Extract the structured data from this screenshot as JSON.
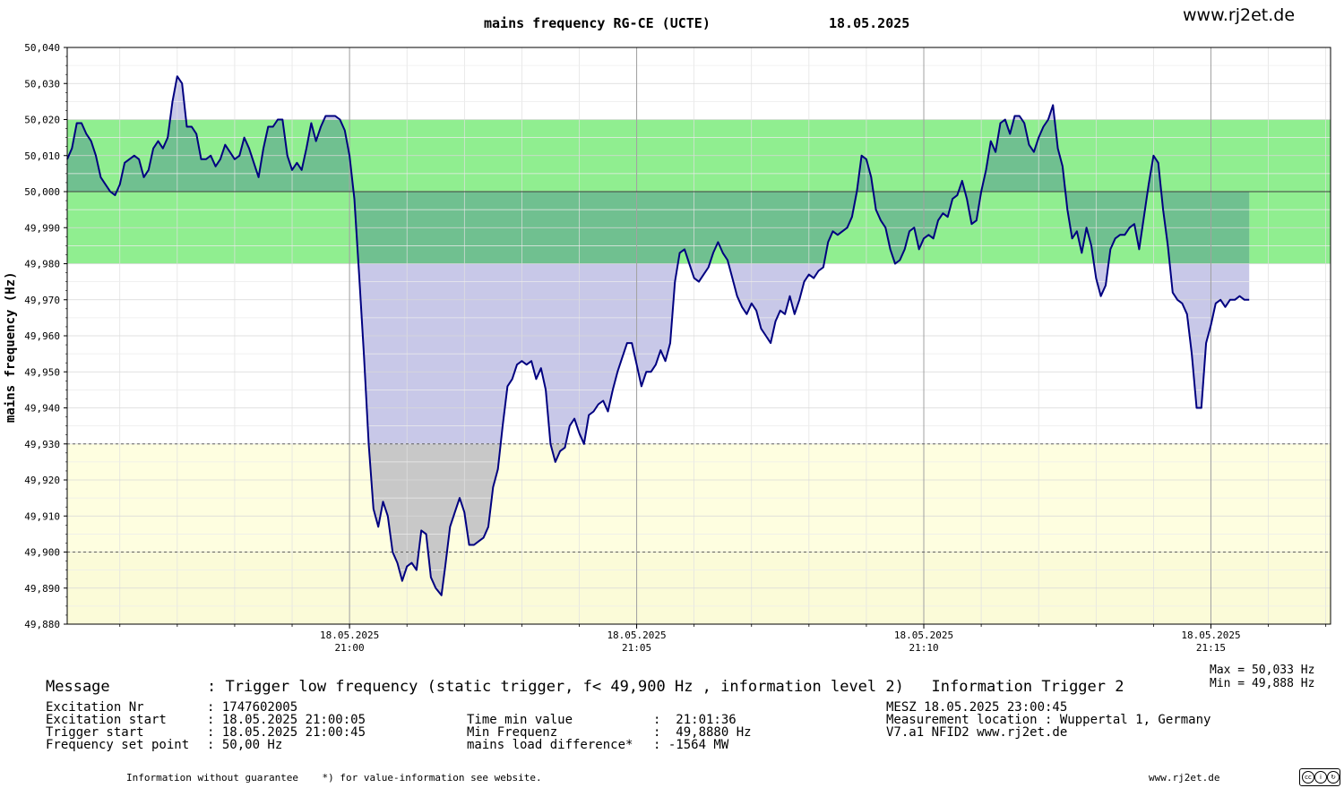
{
  "header": {
    "title": "mains frequency RG-CE (UCTE)",
    "date": "18.05.2025",
    "site": "www.rj2et.de"
  },
  "chart_data": {
    "type": "area",
    "title": "mains frequency RG-CE (UCTE)",
    "ylabel": "mains frequency (Hz)",
    "xlabel": "",
    "ylim": [
      49.88,
      50.04
    ],
    "x_unit": "time (HH:MM:SS, 18.05.2025)",
    "xlim": [
      "20:55:05",
      "21:17:05"
    ],
    "yticks": [
      "50,040",
      "50,030",
      "50,020",
      "50,010",
      "50,000",
      "49,990",
      "49,980",
      "49,970",
      "49,960",
      "49,950",
      "49,940",
      "49,930",
      "49,920",
      "49,910",
      "49,900",
      "49,890",
      "49,880"
    ],
    "xticks": [
      {
        "date": "18.05.2025",
        "time": "21:00",
        "t": "21:00:00"
      },
      {
        "date": "18.05.2025",
        "time": "21:05",
        "t": "21:05:00"
      },
      {
        "date": "18.05.2025",
        "time": "21:10",
        "t": "21:10:00"
      },
      {
        "date": "18.05.2025",
        "time": "21:15",
        "t": "21:15:00"
      }
    ],
    "bands": [
      {
        "name": "normal",
        "from": 49.98,
        "to": 50.02,
        "color": "#90ee90"
      },
      {
        "name": "level1",
        "from": 49.88,
        "to": 49.93,
        "color": "#fefee0"
      },
      {
        "name": "level2",
        "from": 49.88,
        "to": 49.9,
        "color": "#fbfbd8"
      }
    ],
    "reference_lines": [
      50.0,
      49.93,
      49.9
    ],
    "colors": {
      "line": "#000080",
      "fill_blue": "#c8c8e8",
      "fill_dark_green": "#70c090",
      "fill_gray": "#c8c8c8"
    },
    "grid": true,
    "series": [
      {
        "values": [
          [
            "20:55:05",
            50.009
          ],
          [
            "20:55:10",
            50.012
          ],
          [
            "20:55:15",
            50.019
          ],
          [
            "20:55:20",
            50.019
          ],
          [
            "20:55:25",
            50.016
          ],
          [
            "20:55:30",
            50.014
          ],
          [
            "20:55:35",
            50.01
          ],
          [
            "20:55:40",
            50.004
          ],
          [
            "20:55:45",
            50.002
          ],
          [
            "20:55:50",
            50.0
          ],
          [
            "20:55:55",
            49.999
          ],
          [
            "20:56:00",
            50.002
          ],
          [
            "20:56:05",
            50.008
          ],
          [
            "20:56:10",
            50.009
          ],
          [
            "20:56:15",
            50.01
          ],
          [
            "20:56:20",
            50.009
          ],
          [
            "20:56:25",
            50.004
          ],
          [
            "20:56:30",
            50.006
          ],
          [
            "20:56:35",
            50.012
          ],
          [
            "20:56:40",
            50.014
          ],
          [
            "20:56:45",
            50.012
          ],
          [
            "20:56:50",
            50.015
          ],
          [
            "20:56:55",
            50.025
          ],
          [
            "20:57:00",
            50.032
          ],
          [
            "20:57:05",
            50.03
          ],
          [
            "20:57:10",
            50.018
          ],
          [
            "20:57:15",
            50.018
          ],
          [
            "20:57:20",
            50.016
          ],
          [
            "20:57:25",
            50.009
          ],
          [
            "20:57:30",
            50.009
          ],
          [
            "20:57:35",
            50.01
          ],
          [
            "20:57:40",
            50.007
          ],
          [
            "20:57:45",
            50.009
          ],
          [
            "20:57:50",
            50.013
          ],
          [
            "20:57:55",
            50.011
          ],
          [
            "20:58:00",
            50.009
          ],
          [
            "20:58:05",
            50.01
          ],
          [
            "20:58:10",
            50.015
          ],
          [
            "20:58:15",
            50.012
          ],
          [
            "20:58:20",
            50.008
          ],
          [
            "20:58:25",
            50.004
          ],
          [
            "20:58:30",
            50.012
          ],
          [
            "20:58:35",
            50.018
          ],
          [
            "20:58:40",
            50.018
          ],
          [
            "20:58:45",
            50.02
          ],
          [
            "20:58:50",
            50.02
          ],
          [
            "20:58:55",
            50.01
          ],
          [
            "20:59:00",
            50.006
          ],
          [
            "20:59:05",
            50.008
          ],
          [
            "20:59:10",
            50.006
          ],
          [
            "20:59:15",
            50.012
          ],
          [
            "20:59:20",
            50.019
          ],
          [
            "20:59:25",
            50.014
          ],
          [
            "20:59:30",
            50.018
          ],
          [
            "20:59:35",
            50.021
          ],
          [
            "20:59:40",
            50.021
          ],
          [
            "20:59:45",
            50.021
          ],
          [
            "20:59:50",
            50.02
          ],
          [
            "20:59:55",
            50.017
          ],
          [
            "21:00:00",
            50.01
          ],
          [
            "21:00:05",
            49.998
          ],
          [
            "21:00:10",
            49.977
          ],
          [
            "21:00:15",
            49.955
          ],
          [
            "21:00:20",
            49.93
          ],
          [
            "21:00:25",
            49.912
          ],
          [
            "21:00:30",
            49.907
          ],
          [
            "21:00:35",
            49.914
          ],
          [
            "21:00:40",
            49.91
          ],
          [
            "21:00:45",
            49.9
          ],
          [
            "21:00:50",
            49.897
          ],
          [
            "21:00:55",
            49.892
          ],
          [
            "21:01:00",
            49.896
          ],
          [
            "21:01:05",
            49.897
          ],
          [
            "21:01:10",
            49.895
          ],
          [
            "21:01:15",
            49.906
          ],
          [
            "21:01:20",
            49.905
          ],
          [
            "21:01:25",
            49.893
          ],
          [
            "21:01:30",
            49.89
          ],
          [
            "21:01:36",
            49.888
          ],
          [
            "21:01:40",
            49.896
          ],
          [
            "21:01:45",
            49.907
          ],
          [
            "21:01:50",
            49.911
          ],
          [
            "21:01:55",
            49.915
          ],
          [
            "21:02:00",
            49.911
          ],
          [
            "21:02:05",
            49.902
          ],
          [
            "21:02:10",
            49.902
          ],
          [
            "21:02:15",
            49.903
          ],
          [
            "21:02:20",
            49.904
          ],
          [
            "21:02:25",
            49.907
          ],
          [
            "21:02:30",
            49.918
          ],
          [
            "21:02:35",
            49.923
          ],
          [
            "21:02:40",
            49.935
          ],
          [
            "21:02:45",
            49.946
          ],
          [
            "21:02:50",
            49.948
          ],
          [
            "21:02:55",
            49.952
          ],
          [
            "21:03:00",
            49.953
          ],
          [
            "21:03:05",
            49.952
          ],
          [
            "21:03:10",
            49.953
          ],
          [
            "21:03:15",
            49.948
          ],
          [
            "21:03:20",
            49.951
          ],
          [
            "21:03:25",
            49.945
          ],
          [
            "21:03:30",
            49.93
          ],
          [
            "21:03:35",
            49.925
          ],
          [
            "21:03:40",
            49.928
          ],
          [
            "21:03:45",
            49.929
          ],
          [
            "21:03:50",
            49.935
          ],
          [
            "21:03:55",
            49.937
          ],
          [
            "21:04:00",
            49.933
          ],
          [
            "21:04:05",
            49.93
          ],
          [
            "21:04:10",
            49.938
          ],
          [
            "21:04:15",
            49.939
          ],
          [
            "21:04:20",
            49.941
          ],
          [
            "21:04:25",
            49.942
          ],
          [
            "21:04:30",
            49.939
          ],
          [
            "21:04:35",
            49.945
          ],
          [
            "21:04:40",
            49.95
          ],
          [
            "21:04:45",
            49.954
          ],
          [
            "21:04:50",
            49.958
          ],
          [
            "21:04:55",
            49.958
          ],
          [
            "21:05:00",
            49.952
          ],
          [
            "21:05:05",
            49.946
          ],
          [
            "21:05:10",
            49.95
          ],
          [
            "21:05:15",
            49.95
          ],
          [
            "21:05:20",
            49.952
          ],
          [
            "21:05:25",
            49.956
          ],
          [
            "21:05:30",
            49.953
          ],
          [
            "21:05:35",
            49.958
          ],
          [
            "21:05:40",
            49.975
          ],
          [
            "21:05:45",
            49.983
          ],
          [
            "21:05:50",
            49.984
          ],
          [
            "21:05:55",
            49.98
          ],
          [
            "21:06:00",
            49.976
          ],
          [
            "21:06:05",
            49.975
          ],
          [
            "21:06:10",
            49.977
          ],
          [
            "21:06:15",
            49.979
          ],
          [
            "21:06:20",
            49.983
          ],
          [
            "21:06:25",
            49.986
          ],
          [
            "21:06:30",
            49.983
          ],
          [
            "21:06:35",
            49.981
          ],
          [
            "21:06:40",
            49.976
          ],
          [
            "21:06:45",
            49.971
          ],
          [
            "21:06:50",
            49.968
          ],
          [
            "21:06:55",
            49.966
          ],
          [
            "21:07:00",
            49.969
          ],
          [
            "21:07:05",
            49.967
          ],
          [
            "21:07:10",
            49.962
          ],
          [
            "21:07:15",
            49.96
          ],
          [
            "21:07:20",
            49.958
          ],
          [
            "21:07:25",
            49.964
          ],
          [
            "21:07:30",
            49.967
          ],
          [
            "21:07:35",
            49.966
          ],
          [
            "21:07:40",
            49.971
          ],
          [
            "21:07:45",
            49.966
          ],
          [
            "21:07:50",
            49.97
          ],
          [
            "21:07:55",
            49.975
          ],
          [
            "21:08:00",
            49.977
          ],
          [
            "21:08:05",
            49.976
          ],
          [
            "21:08:10",
            49.978
          ],
          [
            "21:08:15",
            49.979
          ],
          [
            "21:08:20",
            49.986
          ],
          [
            "21:08:25",
            49.989
          ],
          [
            "21:08:30",
            49.988
          ],
          [
            "21:08:35",
            49.989
          ],
          [
            "21:08:40",
            49.99
          ],
          [
            "21:08:45",
            49.993
          ],
          [
            "21:08:50",
            50.0
          ],
          [
            "21:08:55",
            50.01
          ],
          [
            "21:09:00",
            50.009
          ],
          [
            "21:09:05",
            50.004
          ],
          [
            "21:09:10",
            49.995
          ],
          [
            "21:09:15",
            49.992
          ],
          [
            "21:09:20",
            49.99
          ],
          [
            "21:09:25",
            49.984
          ],
          [
            "21:09:30",
            49.98
          ],
          [
            "21:09:35",
            49.981
          ],
          [
            "21:09:40",
            49.984
          ],
          [
            "21:09:45",
            49.989
          ],
          [
            "21:09:50",
            49.99
          ],
          [
            "21:09:55",
            49.984
          ],
          [
            "21:10:00",
            49.987
          ],
          [
            "21:10:05",
            49.988
          ],
          [
            "21:10:10",
            49.987
          ],
          [
            "21:10:15",
            49.992
          ],
          [
            "21:10:20",
            49.994
          ],
          [
            "21:10:25",
            49.993
          ],
          [
            "21:10:30",
            49.998
          ],
          [
            "21:10:35",
            49.999
          ],
          [
            "21:10:40",
            50.003
          ],
          [
            "21:10:45",
            49.998
          ],
          [
            "21:10:50",
            49.991
          ],
          [
            "21:10:55",
            49.992
          ],
          [
            "21:11:00",
            50.0
          ],
          [
            "21:11:05",
            50.006
          ],
          [
            "21:11:10",
            50.014
          ],
          [
            "21:11:15",
            50.011
          ],
          [
            "21:11:20",
            50.019
          ],
          [
            "21:11:25",
            50.02
          ],
          [
            "21:11:30",
            50.016
          ],
          [
            "21:11:35",
            50.021
          ],
          [
            "21:11:40",
            50.021
          ],
          [
            "21:11:45",
            50.019
          ],
          [
            "21:11:50",
            50.013
          ],
          [
            "21:11:55",
            50.011
          ],
          [
            "21:12:00",
            50.015
          ],
          [
            "21:12:05",
            50.018
          ],
          [
            "21:12:10",
            50.02
          ],
          [
            "21:12:15",
            50.024
          ],
          [
            "21:12:20",
            50.012
          ],
          [
            "21:12:25",
            50.007
          ],
          [
            "21:12:30",
            49.995
          ],
          [
            "21:12:35",
            49.987
          ],
          [
            "21:12:40",
            49.989
          ],
          [
            "21:12:45",
            49.983
          ],
          [
            "21:12:50",
            49.99
          ],
          [
            "21:12:55",
            49.985
          ],
          [
            "21:13:00",
            49.976
          ],
          [
            "21:13:05",
            49.971
          ],
          [
            "21:13:10",
            49.974
          ],
          [
            "21:13:15",
            49.984
          ],
          [
            "21:13:20",
            49.987
          ],
          [
            "21:13:25",
            49.988
          ],
          [
            "21:13:30",
            49.988
          ],
          [
            "21:13:35",
            49.99
          ],
          [
            "21:13:40",
            49.991
          ],
          [
            "21:13:45",
            49.984
          ],
          [
            "21:13:50",
            49.993
          ],
          [
            "21:13:55",
            50.002
          ],
          [
            "21:14:00",
            50.01
          ],
          [
            "21:14:05",
            50.008
          ],
          [
            "21:14:10",
            49.995
          ],
          [
            "21:14:15",
            49.985
          ],
          [
            "21:14:20",
            49.972
          ],
          [
            "21:14:25",
            49.97
          ],
          [
            "21:14:30",
            49.969
          ],
          [
            "21:14:35",
            49.966
          ],
          [
            "21:14:40",
            49.955
          ],
          [
            "21:14:45",
            49.94
          ],
          [
            "21:14:50",
            49.94
          ],
          [
            "21:14:55",
            49.958
          ],
          [
            "21:15:00",
            49.963
          ],
          [
            "21:15:05",
            49.969
          ],
          [
            "21:15:10",
            49.97
          ],
          [
            "21:15:15",
            49.968
          ],
          [
            "21:15:20",
            49.97
          ],
          [
            "21:15:25",
            49.97
          ],
          [
            "21:15:30",
            49.971
          ],
          [
            "21:15:35",
            49.97
          ],
          [
            "21:15:40",
            49.97
          ]
        ]
      }
    ]
  },
  "footer": {
    "message_label": "Message",
    "message_value": ": Trigger low frequency (static trigger, f< 49,900 Hz , information level 2)   Information Trigger 2",
    "col1": [
      {
        "label": "Excitation Nr",
        "value": ": 1747602005"
      },
      {
        "label": "Excitation start",
        "value": ": 18.05.2025 21:00:05"
      },
      {
        "label": "Trigger start",
        "value": ": 18.05.2025 21:00:45"
      },
      {
        "label": "Frequency set point",
        "value": ": 50,00 Hz"
      }
    ],
    "col2": [
      {
        "label": "Time min value",
        "value": ":  21:01:36"
      },
      {
        "label": "Min Frequenz",
        "value": ":  49,8880 Hz"
      },
      {
        "label": "mains load difference*",
        "value": ": -1564 MW"
      }
    ],
    "col3": [
      "MESZ 18.05.2025 23:00:45",
      "Measurement location : Wuppertal 1, Germany",
      "V7.a1 NFID2 www.rj2et.de"
    ],
    "max_text": "Max = 50,033 Hz",
    "min_text": "Min = 49,888 Hz",
    "disclaimer": "Information without guarantee    *) for value-information see website.",
    "site_bottom": "www.rj2et.de",
    "license_badge": "cc by sa"
  }
}
